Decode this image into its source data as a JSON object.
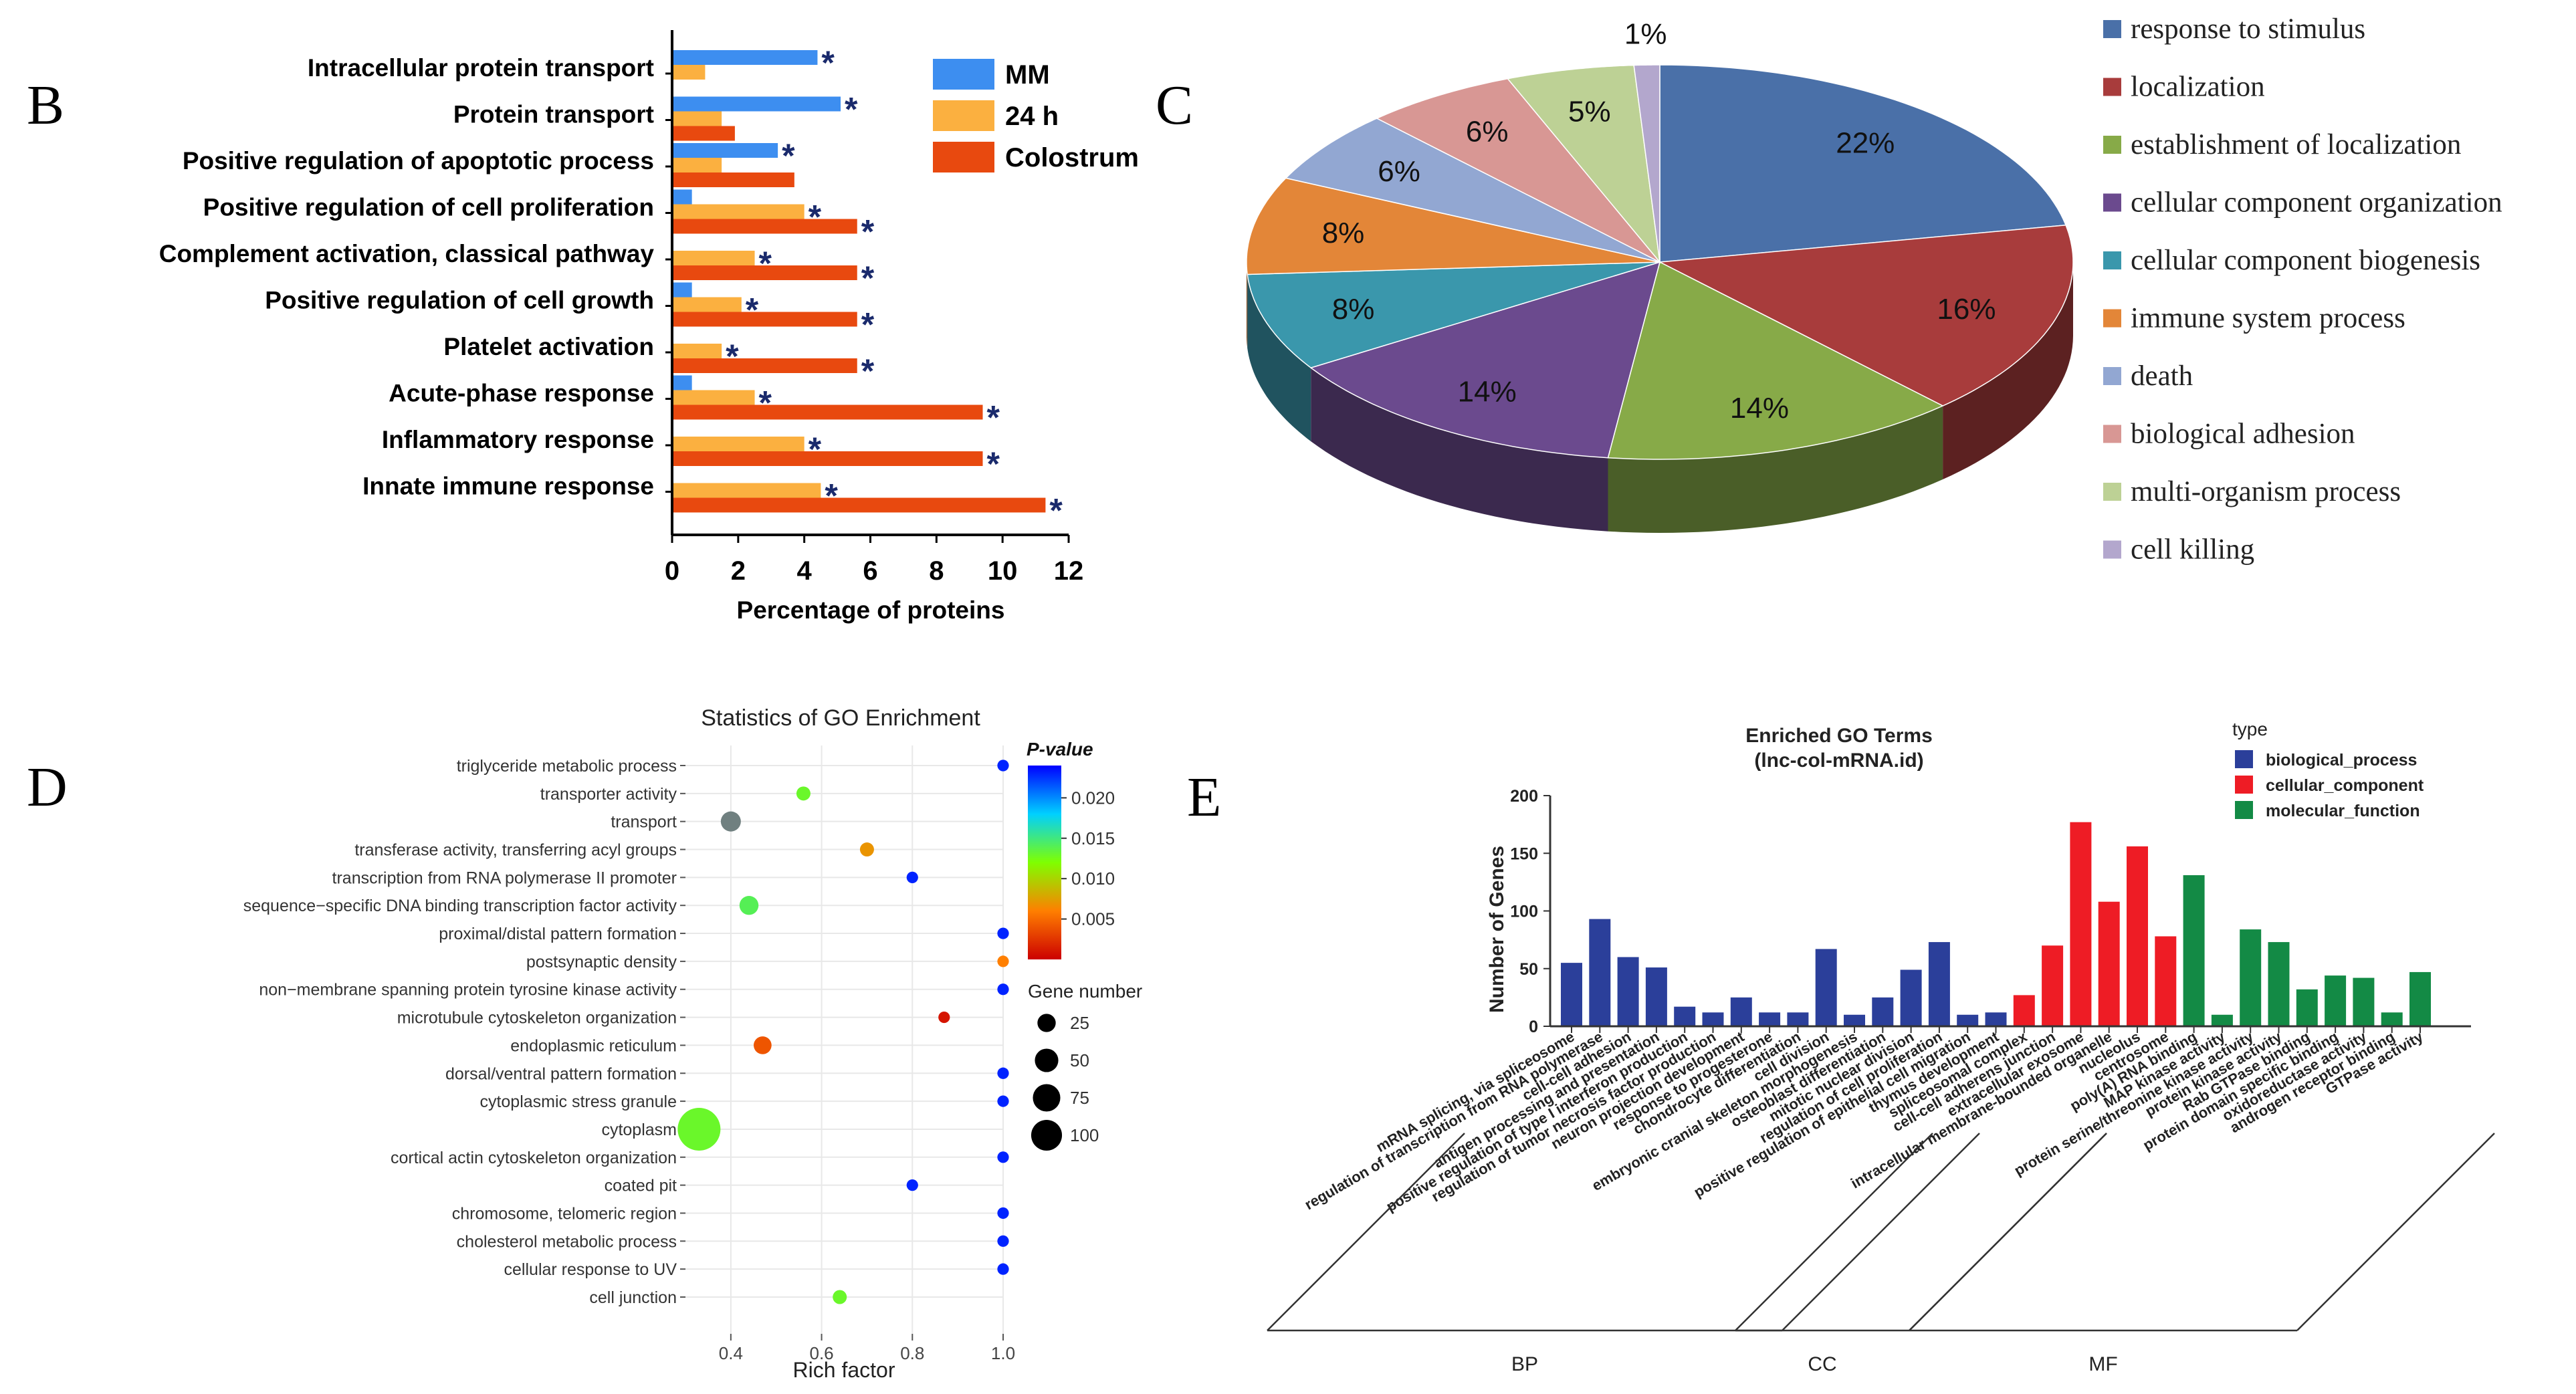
{
  "panel_letters": {
    "b": "B",
    "c": "C",
    "d": "D",
    "e": "E"
  },
  "chart_data": [
    {
      "panel": "B",
      "type": "bar",
      "orientation": "horizontal",
      "title": "",
      "xlabel": "Percentage of proteins",
      "ylabel": "",
      "xlim": [
        0,
        12
      ],
      "xticks": [
        0,
        2,
        4,
        6,
        8,
        10,
        12
      ],
      "categories": [
        "Intracellular protein transport",
        "Protein transport",
        "Positive regulation of apoptotic process",
        "Positive regulation of cell proliferation",
        "Complement activation, classical pathway",
        "Positive regulation of cell growth",
        "Platelet activation",
        "Acute-phase response",
        "Inflammatory response",
        "Innate immune response"
      ],
      "series": [
        {
          "name": "MM",
          "color": "#3d8ef0",
          "values": [
            4.4,
            5.1,
            3.2,
            0.6,
            0,
            0.6,
            0,
            0.6,
            0,
            0
          ]
        },
        {
          "name": "24 h",
          "color": "#fbb040",
          "values": [
            1.0,
            1.5,
            1.5,
            4.0,
            2.5,
            2.1,
            1.5,
            2.5,
            4.0,
            4.5
          ]
        },
        {
          "name": "Colostrum",
          "color": "#e8490f",
          "values": [
            0,
            1.9,
            3.7,
            5.6,
            5.6,
            5.6,
            5.6,
            9.4,
            9.4,
            11.3
          ]
        }
      ],
      "significance_marks": [
        [
          1,
          0,
          0
        ],
        [
          1,
          0,
          0
        ],
        [
          1,
          0,
          0
        ],
        [
          0,
          1,
          1
        ],
        [
          0,
          1,
          1
        ],
        [
          0,
          1,
          1
        ],
        [
          0,
          1,
          1
        ],
        [
          0,
          1,
          1
        ],
        [
          0,
          1,
          1
        ],
        [
          0,
          1,
          1
        ]
      ],
      "significance_symbol": "*",
      "legend": "top-right"
    },
    {
      "panel": "C",
      "type": "pie",
      "style": "3d",
      "labels": [
        "response to stimulus",
        "localization",
        "establishment of localization",
        "cellular component organization",
        "cellular component biogenesis",
        "immune system process",
        "death",
        "biological adhesion",
        "multi-organism process",
        "cell killing"
      ],
      "values": [
        22,
        16,
        14,
        14,
        8,
        8,
        6,
        6,
        5,
        1
      ],
      "value_labels": [
        "22%",
        "16%",
        "14%",
        "14%",
        "8%",
        "8%",
        "6%",
        "6%",
        "5%",
        "1%"
      ],
      "colors": [
        "#4a70a8",
        "#a83c3c",
        "#87aa48",
        "#6b4a8e",
        "#3a97ac",
        "#e38638",
        "#92a7d2",
        "#d89794",
        "#bdd195",
        "#b3a7cd"
      ],
      "legend": "right"
    },
    {
      "panel": "D",
      "type": "scatter",
      "title": "Statistics of GO Enrichment",
      "xlabel": "Rich factor",
      "ylabel": "",
      "xlim": [
        0.3,
        1.0
      ],
      "xticks": [
        0.4,
        0.6,
        0.8,
        1.0
      ],
      "xtick_labels": [
        "0.4",
        "0.6",
        "0.8",
        "1.0"
      ],
      "terms": [
        "triglyceride metabolic process",
        "transporter activity",
        "transport",
        "transferase activity, transferring acyl groups",
        "transcription from RNA polymerase II promoter",
        "sequence−specific DNA binding transcription factor activity",
        "proximal/distal pattern formation",
        "postsynaptic density",
        "non−membrane spanning protein tyrosine kinase activity",
        "microtubule cytoskeleton organization",
        "endoplasmic reticulum",
        "dorsal/ventral pattern formation",
        "cytoplasmic stress granule",
        "cytoplasm",
        "cortical actin cytoskeleton organization",
        "coated pit",
        "chromosome, telomeric region",
        "cholesterol metabolic process",
        "cellular response to UV",
        "cell junction"
      ],
      "rich_factor": [
        1.0,
        0.56,
        0.4,
        0.7,
        0.8,
        0.44,
        1.0,
        1.0,
        1.0,
        0.87,
        0.47,
        1.0,
        1.0,
        0.33,
        1.0,
        0.8,
        1.0,
        1.0,
        1.0,
        0.64
      ],
      "gene_number": [
        1,
        3,
        12,
        3,
        1,
        10,
        1,
        1,
        1,
        1,
        8,
        1,
        1,
        100,
        1,
        1,
        1,
        1,
        1,
        3
      ],
      "p_value": [
        0.023,
        0.013,
        0.021,
        0.007,
        0.023,
        0.014,
        0.023,
        0.006,
        0.023,
        0.001,
        0.004,
        0.023,
        0.023,
        0.013,
        0.023,
        0.023,
        0.023,
        0.023,
        0.023,
        0.013
      ],
      "color_scale": {
        "label": "P-value",
        "range": [
          0.0,
          0.024
        ],
        "ticks": [
          0.005,
          0.01,
          0.015,
          0.02
        ],
        "tick_labels": [
          "0.005",
          "0.010",
          "0.015",
          "0.020"
        ],
        "colors": [
          "#cc0000",
          "#ff7f00",
          "#7fff00",
          "#00d0ff",
          "#0000ff"
        ]
      },
      "size_legend": {
        "label": "Gene number",
        "values": [
          25,
          50,
          75,
          100
        ],
        "value_labels": [
          "25",
          "50",
          "75",
          "100"
        ]
      },
      "grid": true
    },
    {
      "panel": "E",
      "type": "bar",
      "title": "Enriched GO Terms",
      "subtitle": "(lnc-col-mRNA.id)",
      "xlabel": "",
      "ylabel": "Number of Genes",
      "ylim": [
        0,
        200
      ],
      "yticks": [
        0,
        50,
        100,
        150,
        200
      ],
      "categories": [
        "mRNA splicing, via spliceosome",
        "regulation of transcription from RNA polymerase",
        "cell-cell adhesion",
        "antigen processing and presentation",
        "positive regulation of type I interferon production",
        "regulation of tumor necrosis factor production",
        "neuron projection development",
        "response to progesterone",
        "chondrocyte differentiation",
        "cell division",
        "embryonic cranial skeleton morphogenesis",
        "osteoblast differentiation",
        "mitotic nuclear division",
        "regulation of cell proliferation",
        "positive regulation of epithelial cell migration",
        "thymus development",
        "spliceosomal complex",
        "cell-cell adherens junction",
        "extracellular exosome",
        "intracellular membrane-bounded organelle",
        "nucleolus",
        "centrosome",
        "poly(A) RNA binding",
        "MAP kinase activity",
        "protein serine/threonine kinase activity",
        "protein kinase activity",
        "Rab GTPase binding",
        "protein domain specific binding",
        "oxidoreductase activity",
        "androgen receptor binding",
        "GTPase activity"
      ],
      "values": [
        55,
        93,
        60,
        51,
        17,
        12,
        25,
        12,
        12,
        67,
        10,
        25,
        49,
        73,
        10,
        12,
        27,
        70,
        177,
        108,
        156,
        78,
        131,
        10,
        84,
        73,
        32,
        44,
        42,
        12,
        47
      ],
      "types": [
        "BP",
        "BP",
        "BP",
        "BP",
        "BP",
        "BP",
        "BP",
        "BP",
        "BP",
        "BP",
        "BP",
        "BP",
        "BP",
        "BP",
        "BP",
        "BP",
        "CC",
        "CC",
        "CC",
        "CC",
        "CC",
        "CC",
        "MF",
        "MF",
        "MF",
        "MF",
        "MF",
        "MF",
        "MF",
        "MF",
        "MF"
      ],
      "legend_title": "type",
      "legend": [
        {
          "key": "BP",
          "label": "biological_process",
          "color": "#2b3f9a"
        },
        {
          "key": "CC",
          "label": "cellular_component",
          "color": "#ee1c25"
        },
        {
          "key": "MF",
          "label": "molecular_function",
          "color": "#138a45"
        }
      ],
      "groups": [
        {
          "label": "BP",
          "start": 0,
          "end": 15
        },
        {
          "label": "CC",
          "start": 16,
          "end": 21
        },
        {
          "label": "MF",
          "start": 22,
          "end": 30
        }
      ]
    }
  ]
}
